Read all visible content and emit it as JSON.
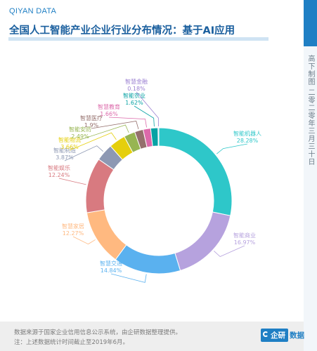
{
  "header": {
    "brand": "QIYAN DATA",
    "title": "全国人工智能产业企业行业分布情况：基于AI应用",
    "side_date": "高下制图 二零二零年三月三十日"
  },
  "chart_data": {
    "type": "pie",
    "donut": true,
    "title": "全国人工智能产业企业行业分布情况：基于AI应用",
    "slices": [
      {
        "label": "智能机器人",
        "value": 28.28,
        "display": "28.28%",
        "color": "#2ec7c9"
      },
      {
        "label": "智能商业",
        "value": 16.97,
        "display": "16.97%",
        "color": "#b6a2de"
      },
      {
        "label": "智慧交通",
        "value": 14.84,
        "display": "14.84%",
        "color": "#5ab1ef"
      },
      {
        "label": "智慧家居",
        "value": 12.27,
        "display": "12.27%",
        "color": "#ffb980"
      },
      {
        "label": "智能娱乐",
        "value": 12.24,
        "display": "12.24%",
        "color": "#d87a80"
      },
      {
        "label": "智能制造",
        "value": 3.87,
        "display": "3.87%",
        "color": "#8d98b3"
      },
      {
        "label": "智能物流",
        "value": 3.66,
        "display": "3.66%",
        "color": "#e5cf0d"
      },
      {
        "label": "智能安防",
        "value": 2.49,
        "display": "2.49%",
        "color": "#97b552"
      },
      {
        "label": "智慧医疗",
        "value": 1.9,
        "display": "1.9%",
        "color": "#95706d"
      },
      {
        "label": "智慧教育",
        "value": 1.66,
        "display": "1.66%",
        "color": "#dc69aa"
      },
      {
        "label": "智能农业",
        "value": 1.62,
        "display": "1.62%",
        "color": "#07a2a4"
      },
      {
        "label": "智慧金融",
        "value": 0.18,
        "display": "0.18%",
        "color": "#9a7fd1"
      }
    ]
  },
  "footer": {
    "source": "数据来源于国家企业信用信息公示系统，由企研数据整理提供。",
    "note": "注：上述数据统计时间截止至2019年6月。",
    "logo_badge": "企研",
    "logo_word": "数据"
  },
  "colors": {
    "accent": "#1f7fc4",
    "title": "#1a5f9e"
  }
}
